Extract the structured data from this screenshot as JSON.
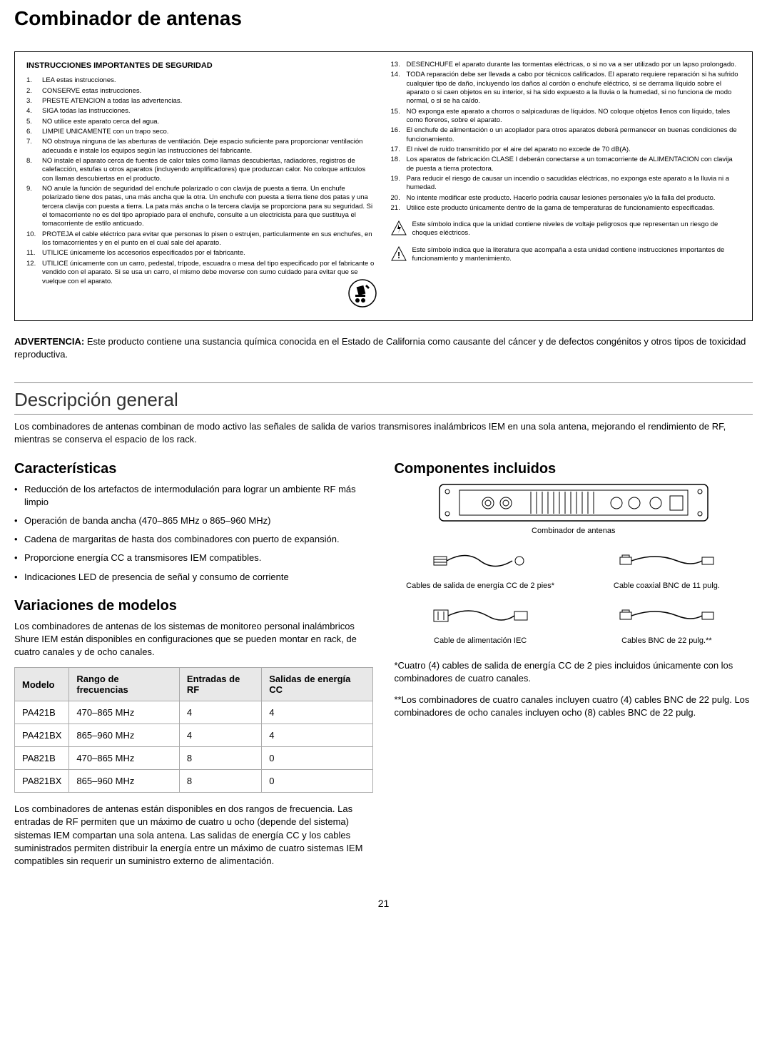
{
  "page": {
    "title": "Combinador de antenas",
    "number": "21"
  },
  "safety": {
    "title": "INSTRUCCIONES IMPORTANTES DE SEGURIDAD",
    "left": [
      {
        "n": "1.",
        "t": "LEA estas instrucciones."
      },
      {
        "n": "2.",
        "t": "CONSERVE estas instrucciones."
      },
      {
        "n": "3.",
        "t": "PRESTE ATENCION a todas las advertencias."
      },
      {
        "n": "4.",
        "t": "SIGA todas las instrucciones."
      },
      {
        "n": "5.",
        "t": "NO utilice este aparato cerca del agua."
      },
      {
        "n": "6.",
        "t": "LIMPIE UNICAMENTE con un trapo seco."
      },
      {
        "n": "7.",
        "t": "NO obstruya ninguna de las aberturas de ventilación. Deje espacio suficiente para proporcionar ventilación adecuada e instale los equipos según las instrucciones del fabricante."
      },
      {
        "n": "8.",
        "t": "NO instale el aparato cerca de fuentes de calor tales como llamas descubiertas, radiadores, registros de calefacción, estufas u otros aparatos (incluyendo amplificadores) que produzcan calor. No coloque artículos con llamas descubiertas en el producto."
      },
      {
        "n": "9.",
        "t": "NO anule la función de seguridad del enchufe polarizado o con clavija de puesta a tierra. Un enchufe polarizado tiene dos patas, una más ancha que la otra. Un enchufe con puesta a tierra tiene dos patas y una tercera clavija con puesta a tierra. La pata más ancha o la tercera clavija se proporciona para su seguridad. Si el tomacorriente no es del tipo apropiado para el enchufe, consulte a un electricista para que sustituya el tomacorriente de estilo anticuado."
      },
      {
        "n": "10.",
        "t": "PROTEJA el cable eléctrico para evitar que personas lo pisen o estrujen, particularmente en sus enchufes, en los tomacorrientes y en el punto en el cual sale del aparato."
      },
      {
        "n": "11.",
        "t": "UTILICE únicamente los accesorios especificados por el fabricante."
      },
      {
        "n": "12.",
        "t": "UTILICE únicamente con un carro, pedestal, trípode, escuadra o mesa del tipo especificado por el fabricante o vendido con el aparato. Si se usa un carro, el mismo debe moverse con sumo cuidado para evitar que se vuelque con el aparato."
      }
    ],
    "right": [
      {
        "n": "13.",
        "t": "DESENCHUFE el aparato durante las tormentas eléctricas, o si no va a ser utilizado por un lapso prolongado."
      },
      {
        "n": "14.",
        "t": "TODA reparación debe ser llevada a cabo por técnicos calificados. El aparato requiere reparación si ha sufrido cualquier tipo de daño, incluyendo los daños al cordón o enchufe eléctrico, si se derrama líquido sobre el aparato o si caen objetos en su interior, si ha sido expuesto a la lluvia o la humedad, si no funciona de modo normal, o si se ha caído."
      },
      {
        "n": "15.",
        "t": "NO exponga este aparato a chorros o salpicaduras de líquidos. NO coloque objetos llenos con líquido, tales como floreros, sobre el aparato."
      },
      {
        "n": "16.",
        "t": "El enchufe de alimentación o un acoplador para otros aparatos deberá permanecer en buenas condiciones de funcionamiento."
      },
      {
        "n": "17.",
        "t": "El nivel de ruido transmitido por el aire del aparato no excede de 70 dB(A)."
      },
      {
        "n": "18.",
        "t": "Los aparatos de fabricación CLASE I deberán conectarse a un tomacorriente de ALIMENTACION con clavija de puesta a tierra protectora."
      },
      {
        "n": "19.",
        "t": "Para reducir el riesgo de causar un incendio o sacudidas eléctricas, no exponga este aparato a la lluvia ni a humedad."
      },
      {
        "n": "20.",
        "t": "No intente modificar este producto. Hacerlo podría causar lesiones personales y/o la falla del producto."
      },
      {
        "n": "21.",
        "t": "Utilice este producto únicamente dentro de la gama de temperaturas de funcionamiento especificadas."
      }
    ],
    "symbol_voltage": "Este símbolo indica que la unidad contiene niveles de voltaje peligrosos que representan un riesgo de choques eléctricos.",
    "symbol_manual": "Este símbolo indica que la literatura que acompaña a esta unidad contiene instrucciones importantes de funcionamiento y mantenimiento."
  },
  "warning": {
    "label": "ADVERTENCIA:",
    "text": " Este producto contiene una sustancia química conocida en el Estado de California como causante del cáncer y de defectos congénitos y otros tipos de toxicidad reproductiva."
  },
  "overview": {
    "title": "Descripción general",
    "intro": "Los combinadores de antenas combinan de modo activo las señales de salida de varios transmisores inalámbricos IEM en una sola antena, mejorando el rendimiento de RF, mientras se conserva el espacio de los rack."
  },
  "features": {
    "title": "Características",
    "items": [
      "Reducción de los artefactos de intermodulación para lograr un ambiente RF más limpio",
      "Operación de banda ancha (470–865 MHz o 865–960 MHz)",
      "Cadena de margaritas de hasta dos combinadores con puerto de expansión.",
      "Proporcione energía CC a transmisores IEM compatibles.",
      "Indicaciones LED de presencia de señal y consumo de corriente"
    ]
  },
  "variations": {
    "title": "Variaciones de modelos",
    "intro": "Los combinadores de antenas de los sistemas de monitoreo personal inalámbricos Shure IEM están disponibles en configuraciones que se pueden montar en rack, de cuatro canales y de ocho canales.",
    "table": {
      "headers": [
        "Modelo",
        "Rango de frecuencias",
        "Entradas de RF",
        "Salidas de energía CC"
      ],
      "rows": [
        [
          "PA421B",
          "470–865 MHz",
          "4",
          "4"
        ],
        [
          "PA421BX",
          "865–960 MHz",
          "4",
          "4"
        ],
        [
          "PA821B",
          "470–865 MHz",
          "8",
          "0"
        ],
        [
          "PA821BX",
          "865–960 MHz",
          "8",
          "0"
        ]
      ]
    },
    "outro": "Los combinadores de antenas están disponibles en dos rangos de frecuencia. Las entradas de RF permiten que un máximo de cuatro u ocho (depende del sistema) sistemas IEM compartan una sola antena. Las salidas de energía CC y los cables suministrados permiten distribuir la energía entre un máximo de cuatro sistemas IEM compatibles sin requerir un suministro externo de alimentación."
  },
  "components": {
    "title": "Componentes incluidos",
    "main_label": "Combinador de antenas",
    "items": [
      "Cables de salida de energía CC de 2 pies*",
      "Cable coaxial BNC de 11 pulg.",
      "Cable de alimentación IEC",
      "Cables BNC de 22 pulg.**"
    ],
    "note1": "*Cuatro (4) cables de salida de energía CC de 2 pies incluidos únicamente con los combinadores de cuatro canales.",
    "note2": "**Los combinadores de cuatro canales incluyen cuatro (4) cables BNC de 22 pulg. Los combinadores de ocho canales incluyen ocho (8) cables BNC de 22 pulg."
  }
}
